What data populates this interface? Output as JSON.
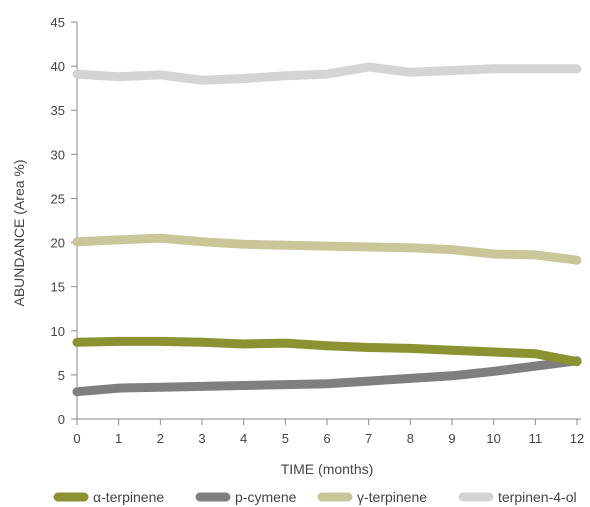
{
  "chart_data": {
    "type": "line",
    "xlabel": "TIME (months)",
    "ylabel": "ABUNDANCE (Area %)",
    "xlim": [
      0,
      12
    ],
    "ylim": [
      0,
      45
    ],
    "x": [
      0,
      1,
      2,
      3,
      4,
      5,
      6,
      7,
      8,
      9,
      10,
      11,
      12
    ],
    "x_ticks": [
      0,
      1,
      2,
      3,
      4,
      5,
      6,
      7,
      8,
      9,
      10,
      11,
      12
    ],
    "y_ticks": [
      0,
      5,
      10,
      15,
      20,
      25,
      30,
      35,
      40,
      45
    ],
    "grid": false,
    "legend_position": "bottom",
    "series": [
      {
        "name": "α-terpinene",
        "color": "#8a9232",
        "values": [
          8.7,
          8.8,
          8.8,
          8.7,
          8.5,
          8.6,
          8.3,
          8.1,
          8.0,
          7.8,
          7.6,
          7.4,
          6.5
        ]
      },
      {
        "name": "p-cymene",
        "color": "#7f7f7f",
        "values": [
          3.1,
          3.5,
          3.6,
          3.7,
          3.8,
          3.9,
          4.0,
          4.3,
          4.6,
          4.9,
          5.4,
          6.0,
          6.6
        ]
      },
      {
        "name": "γ-terpinene",
        "color": "#c9c79a",
        "values": [
          20.1,
          20.3,
          20.5,
          20.1,
          19.8,
          19.7,
          19.6,
          19.5,
          19.4,
          19.2,
          18.7,
          18.6,
          18.0
        ]
      },
      {
        "name": "terpinen-4-ol",
        "color": "#d4d4d4",
        "values": [
          39.1,
          38.8,
          39.0,
          38.4,
          38.6,
          38.9,
          39.1,
          39.9,
          39.3,
          39.5,
          39.7,
          39.7,
          39.7
        ]
      }
    ]
  }
}
